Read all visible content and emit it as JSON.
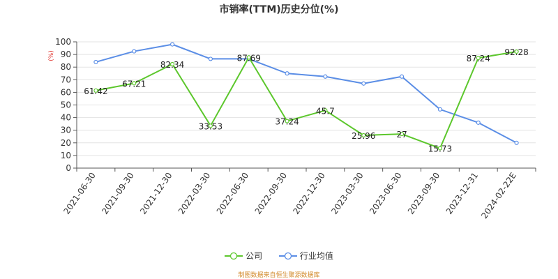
{
  "chart_data": {
    "type": "line",
    "title": "市销率(TTM)历史分位(%)",
    "ylabel": "(%)",
    "ylim": [
      0,
      100
    ],
    "y_ticks": [
      0,
      10,
      20,
      30,
      40,
      50,
      60,
      70,
      80,
      90,
      100
    ],
    "grid": true,
    "legend_position": "bottom",
    "categories": [
      "2021-06-30",
      "2021-09-30",
      "2021-12-30",
      "2022-03-30",
      "2022-06-30",
      "2022-09-30",
      "2022-12-30",
      "2023-03-30",
      "2023-06-30",
      "2023-09-30",
      "2023-12-31",
      "2024-02-22E"
    ],
    "series": [
      {
        "name": "公司",
        "color": "#5cc72c",
        "values": [
          61.42,
          67.21,
          82.34,
          33.53,
          87.69,
          37.24,
          45.7,
          25.96,
          27,
          15.73,
          87.24,
          92.28
        ],
        "value_labels": [
          "61.42",
          "67.21",
          "82.34",
          "33.53",
          "87.69",
          "37.24",
          "45.7",
          "25.96",
          "27",
          "15.73",
          "87.24",
          "92.28"
        ]
      },
      {
        "name": "行业均值",
        "color": "#5b8ee6",
        "values": [
          84,
          92.5,
          98,
          86.5,
          86.5,
          75,
          72.5,
          67,
          72.5,
          46.5,
          36,
          20
        ]
      }
    ]
  },
  "source": "制图数据来自恒生聚源数据库",
  "source_color": "#d28a2a"
}
